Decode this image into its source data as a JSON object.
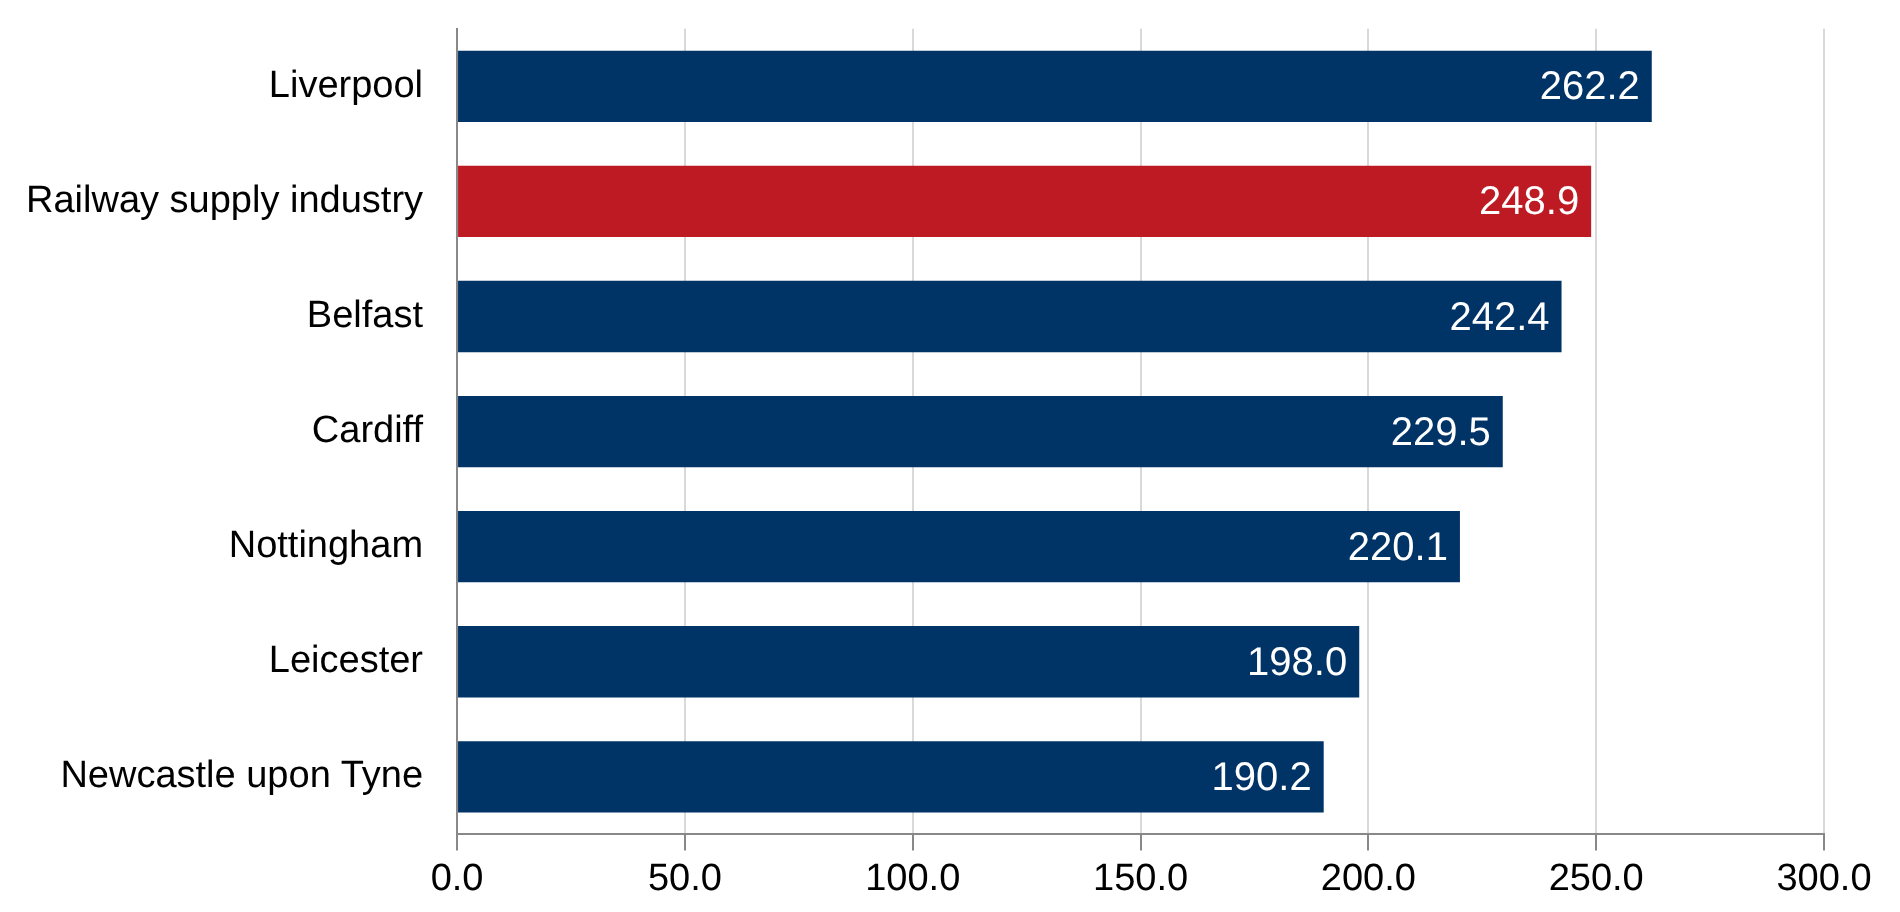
{
  "chart_data": {
    "type": "bar",
    "orientation": "horizontal",
    "categories": [
      "Liverpool",
      "Railway supply industry",
      "Belfast",
      "Cardiff",
      "Nottingham",
      "Leicester",
      "Newcastle upon Tyne"
    ],
    "values": [
      262.2,
      248.9,
      242.4,
      229.5,
      220.1,
      198.0,
      190.2
    ],
    "colors": [
      "#003366",
      "#be1a24",
      "#003366",
      "#003366",
      "#003366",
      "#003366",
      "#003366"
    ],
    "value_labels": [
      "262.2",
      "248.9",
      "242.4",
      "229.5",
      "220.1",
      "198.0",
      "190.2"
    ],
    "xlim": [
      0,
      300
    ],
    "xticks": [
      {
        "value": 0,
        "label": "0.0"
      },
      {
        "value": 50,
        "label": "50.0"
      },
      {
        "value": 100,
        "label": "100.0"
      },
      {
        "value": 150,
        "label": "150.0"
      },
      {
        "value": 200,
        "label": "200.0"
      },
      {
        "value": 250,
        "label": "250.0"
      },
      {
        "value": 300,
        "label": "300.0"
      }
    ],
    "grid": "x"
  }
}
